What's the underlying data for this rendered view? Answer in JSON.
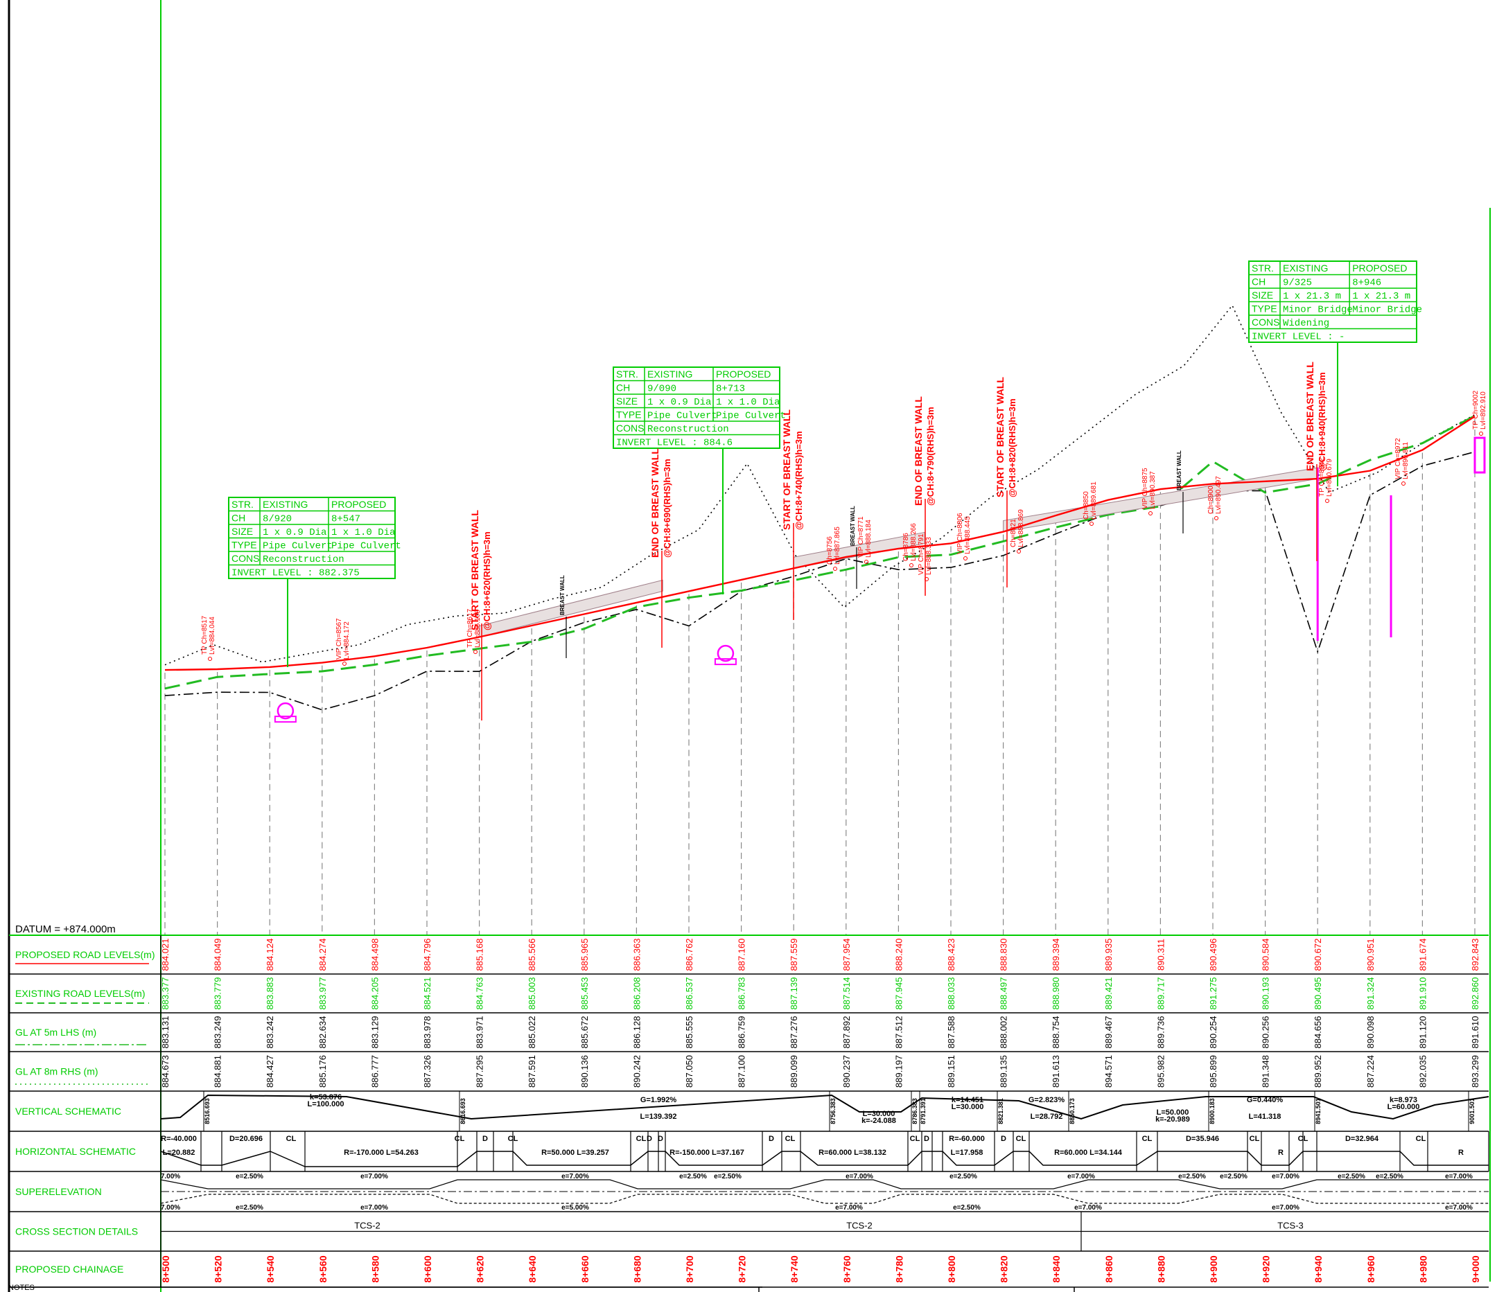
{
  "datum": "DATUM = +874.000m",
  "rows": {
    "proposed": "PROPOSED ROAD LEVELS(m)",
    "existing": "EXISTING ROAD LEVELS(m)",
    "gl_lhs": "GL AT 5m LHS (m)",
    "gl_rhs": "GL AT 8m RHS (m)",
    "vertical": "VERTICAL SCHEMATIC",
    "horizontal": "HORIZONTAL SCHEMATIC",
    "superelevation": "SUPERELEVATION",
    "cross": "CROSS SECTION DETAILS",
    "chainage": "PROPOSED CHAINAGE"
  },
  "colors": {
    "accent_green": "#00cc00",
    "proposed_red": "#ff0000",
    "structure_magenta": "#ff00ff",
    "existing_dash": "#22bb22",
    "ink": "#000000"
  },
  "stations": [
    {
      "ch": "8+500",
      "prop": "884.021",
      "exist": "883.377",
      "lhs": "883.131",
      "rhs": "884.673"
    },
    {
      "ch": "8+520",
      "prop": "884.049",
      "exist": "883.779",
      "lhs": "883.249",
      "rhs": "884.881"
    },
    {
      "ch": "8+540",
      "prop": "884.124",
      "exist": "883.883",
      "lhs": "883.242",
      "rhs": "884.427"
    },
    {
      "ch": "8+560",
      "prop": "884.274",
      "exist": "883.977",
      "lhs": "882.634",
      "rhs": "885.176"
    },
    {
      "ch": "8+580",
      "prop": "884.498",
      "exist": "884.205",
      "lhs": "883.129",
      "rhs": "886.777"
    },
    {
      "ch": "8+600",
      "prop": "884.796",
      "exist": "884.521",
      "lhs": "883.978",
      "rhs": "887.326"
    },
    {
      "ch": "8+620",
      "prop": "885.168",
      "exist": "884.763",
      "lhs": "883.971",
      "rhs": "887.295"
    },
    {
      "ch": "8+640",
      "prop": "885.566",
      "exist": "885.003",
      "lhs": "885.022",
      "rhs": "887.591"
    },
    {
      "ch": "8+660",
      "prop": "885.965",
      "exist": "885.453",
      "lhs": "885.672",
      "rhs": "890.136"
    },
    {
      "ch": "8+680",
      "prop": "886.363",
      "exist": "886.208",
      "lhs": "886.128",
      "rhs": "890.242"
    },
    {
      "ch": "8+700",
      "prop": "886.762",
      "exist": "886.537",
      "lhs": "885.555",
      "rhs": "887.050"
    },
    {
      "ch": "8+720",
      "prop": "887.160",
      "exist": "886.783",
      "lhs": "886.759",
      "rhs": "887.100"
    },
    {
      "ch": "8+740",
      "prop": "887.559",
      "exist": "887.139",
      "lhs": "887.276",
      "rhs": "889.099"
    },
    {
      "ch": "8+760",
      "prop": "887.954",
      "exist": "887.514",
      "lhs": "887.892",
      "rhs": "890.237"
    },
    {
      "ch": "8+780",
      "prop": "888.240",
      "exist": "887.945",
      "lhs": "887.512",
      "rhs": "889.197"
    },
    {
      "ch": "8+800",
      "prop": "888.423",
      "exist": "888.033",
      "lhs": "887.588",
      "rhs": "889.151"
    },
    {
      "ch": "8+820",
      "prop": "888.830",
      "exist": "888.497",
      "lhs": "888.002",
      "rhs": "889.135"
    },
    {
      "ch": "8+840",
      "prop": "889.394",
      "exist": "888.980",
      "lhs": "888.754",
      "rhs": "891.613"
    },
    {
      "ch": "8+860",
      "prop": "889.935",
      "exist": "889.421",
      "lhs": "889.467",
      "rhs": "894.571"
    },
    {
      "ch": "8+880",
      "prop": "890.311",
      "exist": "889.717",
      "lhs": "889.736",
      "rhs": "895.982"
    },
    {
      "ch": "8+900",
      "prop": "890.496",
      "exist": "891.275",
      "lhs": "890.254",
      "rhs": "895.899"
    },
    {
      "ch": "8+920",
      "prop": "890.584",
      "exist": "890.193",
      "lhs": "890.256",
      "rhs": "891.348"
    },
    {
      "ch": "8+940",
      "prop": "890.672",
      "exist": "890.495",
      "lhs": "884.656",
      "rhs": "889.952"
    },
    {
      "ch": "8+960",
      "prop": "890.951",
      "exist": "891.324",
      "lhs": "890.098",
      "rhs": "887.224"
    },
    {
      "ch": "8+980",
      "prop": "891.674",
      "exist": "891.910",
      "lhs": "891.120",
      "rhs": "892.035"
    },
    {
      "ch": "9+000",
      "prop": "892.843",
      "exist": "892.860",
      "lhs": "891.610",
      "rhs": "893.299"
    }
  ],
  "structures": [
    {
      "h1": "STR.",
      "h2": "EXISTING",
      "h3": "PROPOSED",
      "rows": [
        [
          "CH",
          "8/920",
          "8+547"
        ],
        [
          "SIZE",
          "1 x 0.9 Dia",
          "1 x 1.0 Dia"
        ],
        [
          "TYPE",
          "Pipe Culvert",
          "Pipe Culvert"
        ],
        [
          "CONS",
          "Reconstruction",
          ""
        ],
        [
          "INVERT LEVEL",
          "",
          ""
        ]
      ],
      "invert": "INVERT LEVEL : 882.375"
    },
    {
      "h1": "STR.",
      "h2": "EXISTING",
      "h3": "PROPOSED",
      "rows": [
        [
          "CH",
          "9/090",
          "8+713"
        ],
        [
          "SIZE",
          "1 x 0.9 Dia",
          "1 x 1.0 Dia"
        ],
        [
          "TYPE",
          "Pipe Culvert",
          "Pipe Culvert"
        ],
        [
          "CONS",
          "Reconstruction",
          ""
        ]
      ],
      "invert": "INVERT LEVEL : 884.6"
    },
    {
      "h1": "STR.",
      "h2": "EXISTING",
      "h3": "PROPOSED",
      "rows": [
        [
          "CH",
          "9/325",
          "8+946"
        ],
        [
          "SIZE",
          "1 x 21.3 m",
          "1 x 21.3 m"
        ],
        [
          "TYPE",
          "Minor Bridge",
          "Minor Bridge"
        ],
        [
          "CONS",
          "Widening",
          ""
        ]
      ],
      "invert": "INVERT LEVEL : -"
    }
  ],
  "wall_notes": [
    {
      "line1": "START OF BREAST WALL",
      "line2": "@CH:8+620(RHS)h=3m"
    },
    {
      "line1": "END OF BREAST WALL",
      "line2": "@CH:8+690(RHS)h=3m"
    },
    {
      "line1": "START OF BREAST WALL",
      "line2": "@CH:8+740(RHS)h=3m"
    },
    {
      "line1": "END OF BREAST WALL",
      "line2": "@CH:8+790(RHS)h=3m"
    },
    {
      "line1": "START OF BREAST WALL",
      "line2": "@CH:8+820(RHS)h=3m"
    },
    {
      "line1": "END OF BREAST WALL",
      "line2": "@CH:8+940(RHS)h=3m"
    }
  ],
  "breast_wall": "BREAST WALL",
  "ip_labels": [
    {
      "a": "TP  Ch=8517",
      "b": "Lvl=884.044"
    },
    {
      "a": "VIP Ch=8567",
      "b": "Lvl=884.172"
    },
    {
      "a": "TP  Ch=8617",
      "b": "Lvl=885.108"
    },
    {
      "a": "Ch=8756",
      "b": "Lvl=887.865"
    },
    {
      "a": "VIP Ch=8771",
      "b": "Lvl=888.184"
    },
    {
      "a": "Ch=8786",
      "b": "Lvl=888.266"
    },
    {
      "a": "VIP Ch=8791",
      "b": "Lvl=888.333"
    },
    {
      "a": "VIP Ch=8806",
      "b": "Lvl=888.445"
    },
    {
      "a": "Ch=8821",
      "b": "Lvl=888.869"
    },
    {
      "a": "Ch=8850",
      "b": "Lvl=889.681"
    },
    {
      "a": "VIP Ch=8875",
      "b": "Lvl=890.387"
    },
    {
      "a": "Ch=8900",
      "b": "Lvl=890.497"
    },
    {
      "a": "TP Ch=8942",
      "b": "Lvl=890.679"
    },
    {
      "a": "VIP Ch=8972",
      "b": "Lvl=890.811"
    },
    {
      "a": "TP Ch=9002",
      "b": "Lvl=892.910"
    }
  ],
  "vertical_labels": [
    "k=53.876",
    "L=100.000",
    "G=1.992%",
    "L=139.392",
    "L=30.000",
    "k=-24.088",
    "k=14.451",
    "L=30.000",
    "G=2.823%",
    "L=28.792",
    "L=50.000",
    "k=-20.989",
    "G=0.440%",
    "L=41.318",
    "k=8.973",
    "L=60.000"
  ],
  "vertical_ips": [
    "8516.693",
    "8616.693",
    "8756.383",
    "8786.383",
    "8791.391",
    "8821.381",
    "8850.173",
    "8900.183",
    "8941.501",
    "9001.501"
  ],
  "horizontal_labels": [
    "R=-40.000",
    "L=20.882",
    "D=20.696",
    "CL",
    "R=-170.000  L=54.263",
    "CL",
    "D",
    "CL",
    "R=50.000  L=39.257",
    "CL",
    "D",
    "D",
    "R=-150.000  L=37.167",
    "D",
    "CL",
    "R=60.000  L=38.132",
    "CL",
    "D",
    "R=-60.000",
    "L=17.958",
    "D",
    "CL",
    "R=60.000  L=34.144",
    "CL",
    "D=35.946",
    "CL",
    "R",
    "CL",
    "D=32.964",
    "CL",
    "R"
  ],
  "super_top": [
    "7.00%",
    "e=2.50%",
    "e=7.00%",
    "e=7.00%",
    "e=2.50%",
    "e=2.50%",
    "e=7.00%",
    "e=2.50%",
    "e=7.00%",
    "e=2.50%",
    "e=2.50%",
    "e=7.00%",
    "e=2.50%",
    "e=2.50%",
    "e=7.00%"
  ],
  "super_bot": [
    "7.00%",
    "e=2.50%",
    "e=7.00%",
    "e=5.00%",
    "e=7.00%",
    "e=2.50%",
    "e=7.00%",
    "e=7.00%",
    "e=7.00%"
  ],
  "cross_sections": [
    "TCS-2",
    "TCS-2",
    "TCS-3"
  ],
  "notes": "NOTES"
}
